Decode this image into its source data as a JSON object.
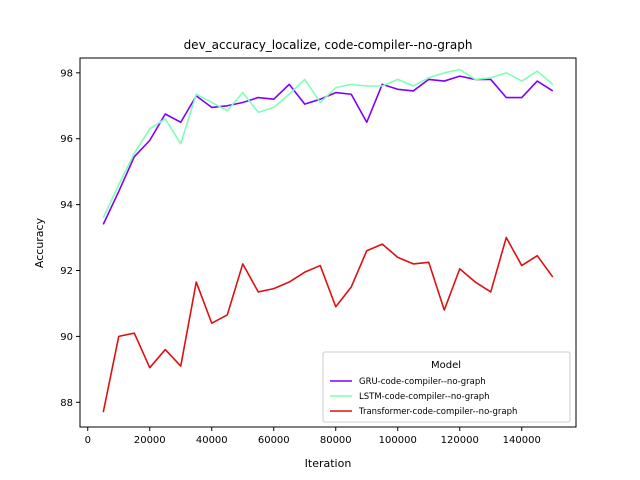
{
  "chart_data": {
    "type": "line",
    "title": "dev_accuracy_localize, code-compiler--no-graph",
    "xlabel": "Iteration",
    "ylabel": "Accuracy",
    "xlim": [
      -2500,
      157500
    ],
    "ylim": [
      87.25,
      98.45
    ],
    "xticks": [
      0,
      20000,
      40000,
      60000,
      80000,
      100000,
      120000,
      140000
    ],
    "yticks": [
      88,
      90,
      92,
      94,
      96,
      98
    ],
    "grid": false,
    "legend": {
      "title": "Model",
      "placement": "lower-right"
    },
    "x": [
      5000,
      10000,
      15000,
      20000,
      25000,
      30000,
      35000,
      40000,
      45000,
      50000,
      55000,
      60000,
      65000,
      70000,
      75000,
      80000,
      85000,
      90000,
      95000,
      100000,
      105000,
      110000,
      115000,
      120000,
      125000,
      130000,
      135000,
      140000,
      145000,
      150000
    ],
    "series": [
      {
        "name": "GRU-code-compiler--no-graph",
        "color": "#8000ff",
        "values": [
          93.4,
          94.4,
          95.45,
          95.95,
          96.75,
          96.5,
          97.3,
          96.95,
          97.0,
          97.1,
          97.25,
          97.2,
          97.65,
          97.05,
          97.2,
          97.4,
          97.35,
          96.5,
          97.65,
          97.5,
          97.45,
          97.8,
          97.75,
          97.9,
          97.8,
          97.8,
          97.25,
          97.25,
          97.75,
          97.45
        ]
      },
      {
        "name": "LSTM-code-compiler--no-graph",
        "color": "#80ffb4",
        "values": [
          93.6,
          94.6,
          95.55,
          96.3,
          96.6,
          95.85,
          97.35,
          97.1,
          96.85,
          97.4,
          96.8,
          96.95,
          97.35,
          97.8,
          97.1,
          97.55,
          97.65,
          97.6,
          97.6,
          97.8,
          97.6,
          97.85,
          98.0,
          98.1,
          97.8,
          97.85,
          98.0,
          97.75,
          98.05,
          97.65
        ]
      },
      {
        "name": "Transformer-code-compiler--no-graph",
        "color": "#dd1111",
        "values": [
          87.7,
          90.0,
          90.1,
          89.05,
          89.6,
          89.1,
          91.65,
          90.4,
          90.65,
          92.2,
          91.35,
          91.45,
          91.65,
          91.95,
          92.15,
          90.9,
          91.5,
          92.6,
          92.8,
          92.4,
          92.2,
          92.25,
          90.8,
          92.05,
          91.65,
          91.35,
          93.0,
          92.15,
          92.45,
          91.8
        ]
      }
    ]
  }
}
